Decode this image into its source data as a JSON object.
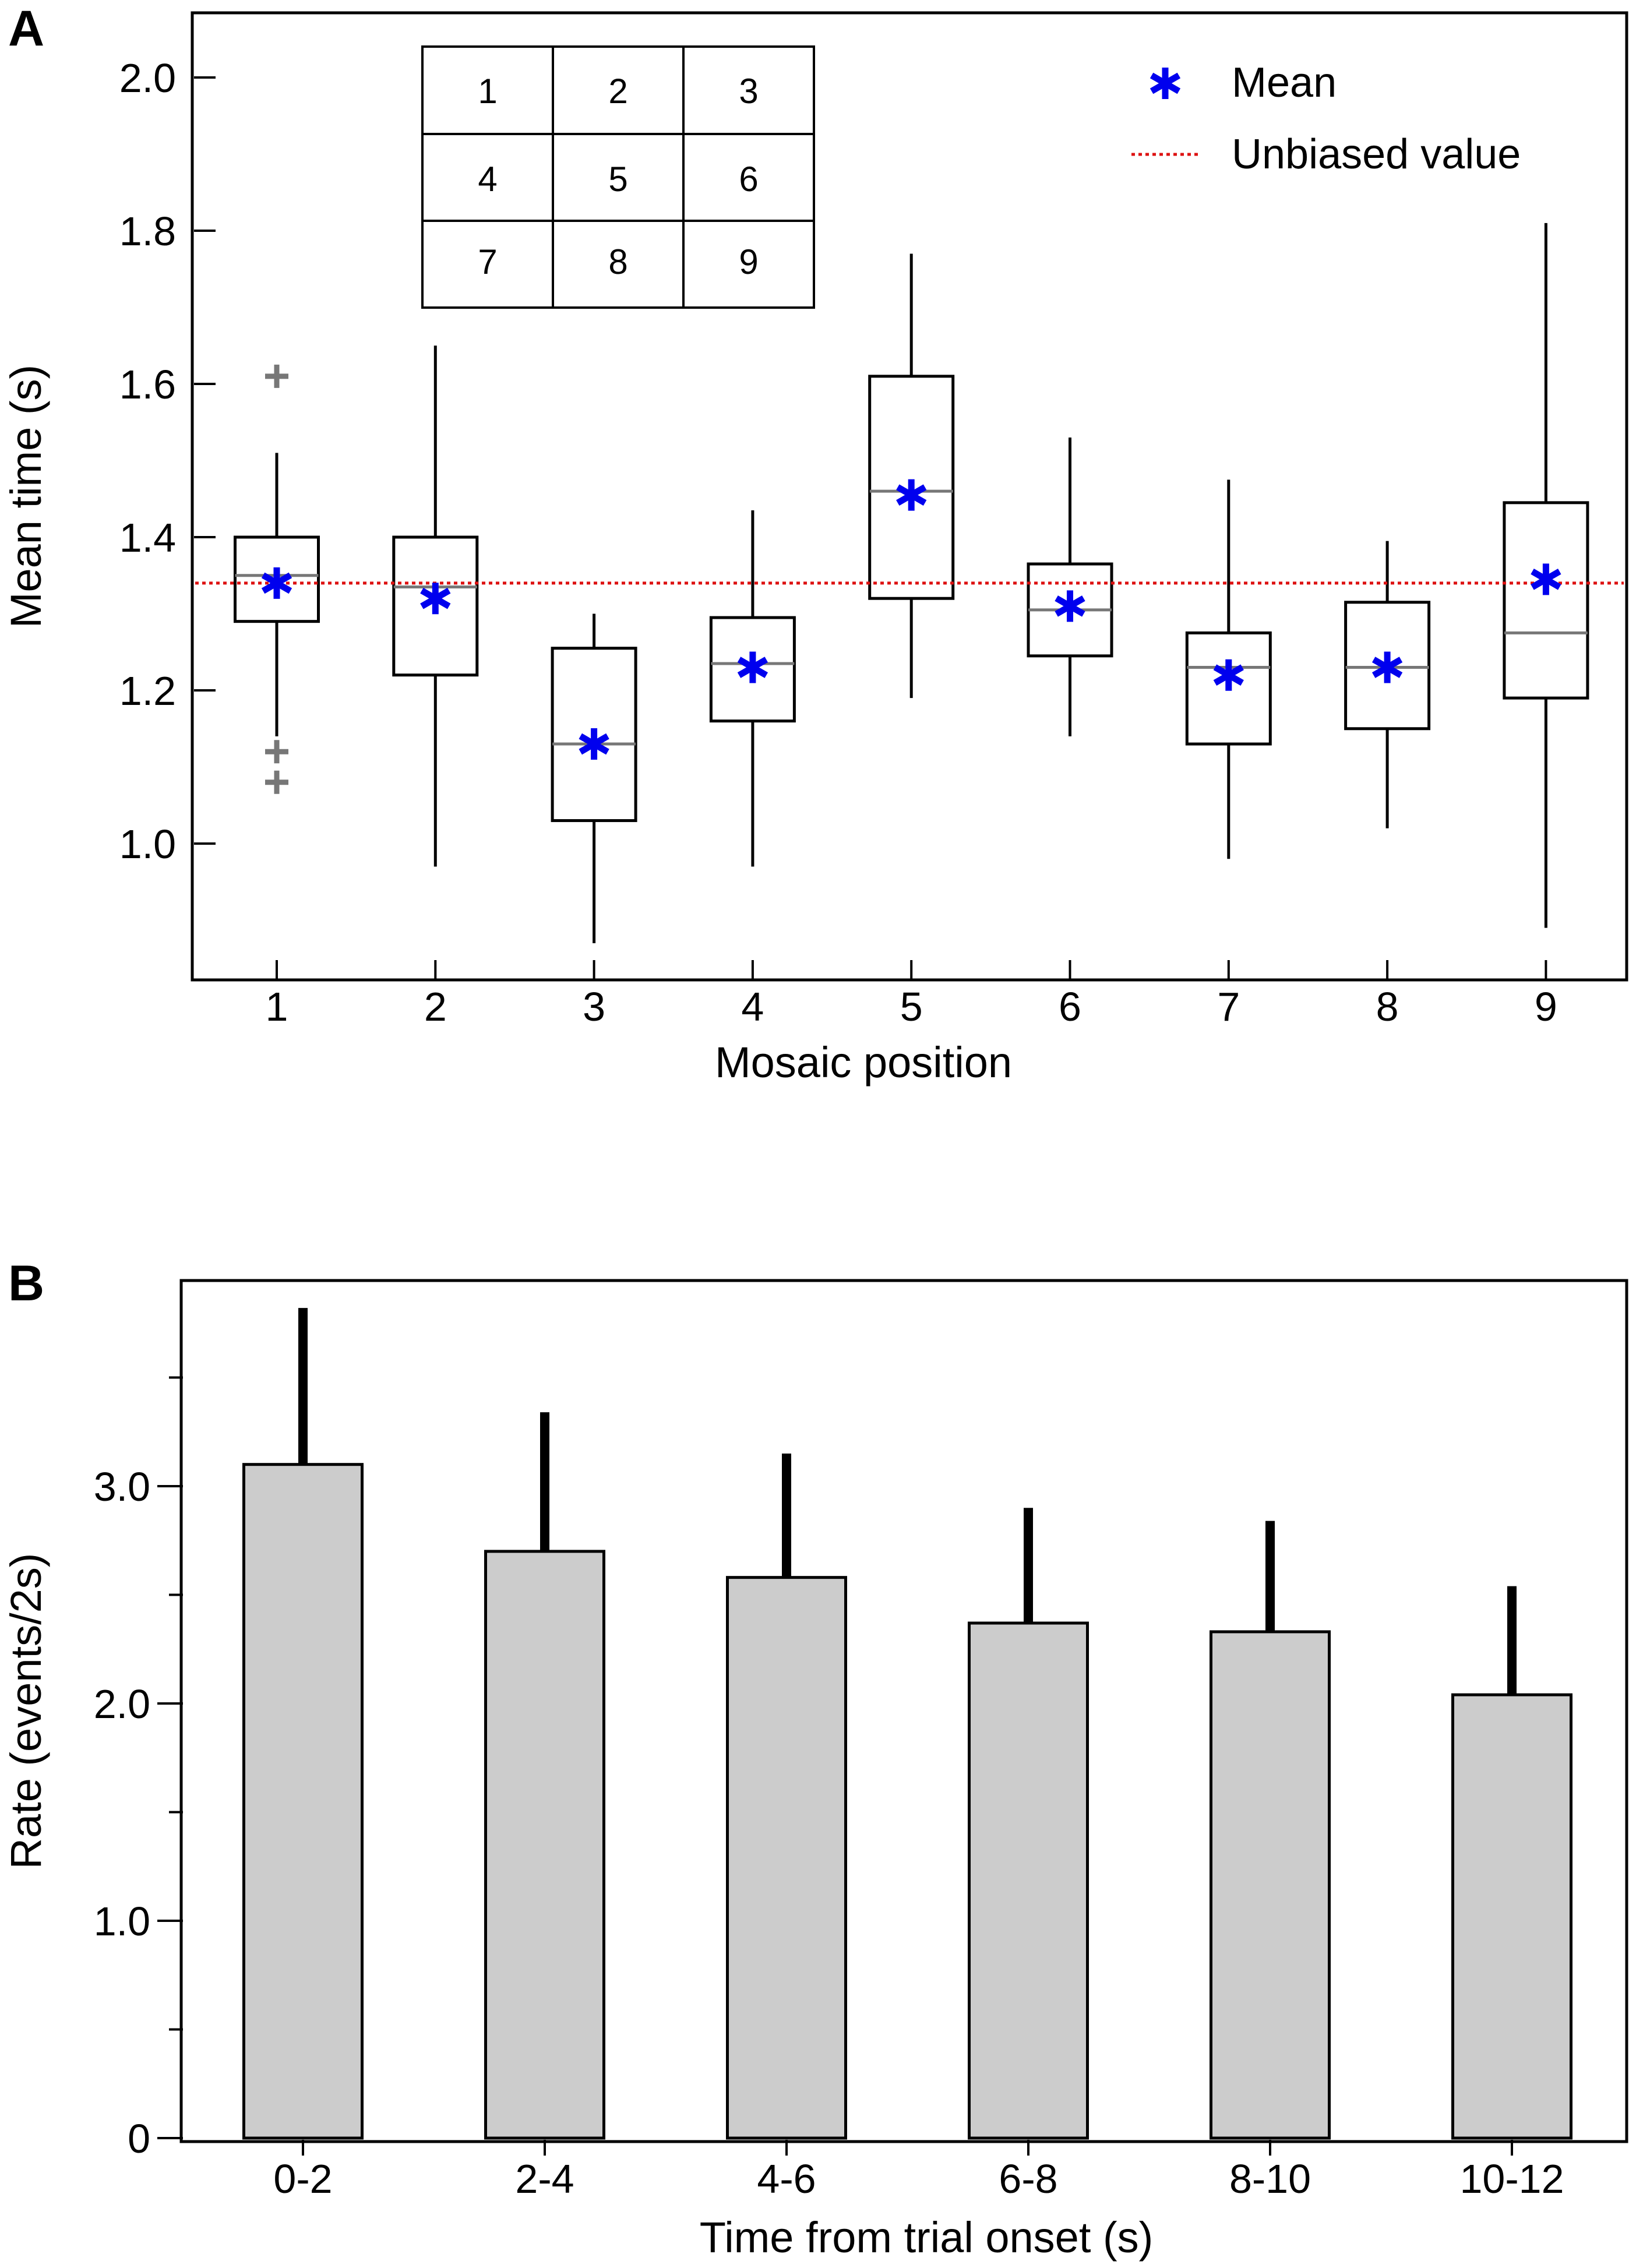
{
  "chart_data": [
    {
      "panel_label": "A",
      "type": "box",
      "xlabel": "Mosaic position",
      "ylabel": "Mean time (s)",
      "categories": [
        "1",
        "2",
        "3",
        "4",
        "5",
        "6",
        "7",
        "8",
        "9"
      ],
      "ylim": [
        0.83,
        2.09
      ],
      "yticks": [
        1.0,
        1.2,
        1.4,
        1.6,
        1.8,
        2.0
      ],
      "ytick_labels": [
        "1.0",
        "1.2",
        "1.4",
        "1.6",
        "1.8",
        "2.0"
      ],
      "boxes": [
        {
          "whisker_low": 1.14,
          "q1": 1.29,
          "median": 1.35,
          "q3": 1.4,
          "whisker_high": 1.51,
          "mean": 1.34,
          "outliers": [
            1.61,
            1.12,
            1.08
          ]
        },
        {
          "whisker_low": 0.97,
          "q1": 1.22,
          "median": 1.335,
          "q3": 1.4,
          "whisker_high": 1.65,
          "mean": 1.32,
          "outliers": []
        },
        {
          "whisker_low": 0.87,
          "q1": 1.03,
          "median": 1.13,
          "q3": 1.255,
          "whisker_high": 1.3,
          "mean": 1.13,
          "outliers": []
        },
        {
          "whisker_low": 0.97,
          "q1": 1.16,
          "median": 1.235,
          "q3": 1.295,
          "whisker_high": 1.435,
          "mean": 1.23,
          "outliers": []
        },
        {
          "whisker_low": 1.19,
          "q1": 1.32,
          "median": 1.46,
          "q3": 1.61,
          "whisker_high": 1.77,
          "mean": 1.455,
          "outliers": []
        },
        {
          "whisker_low": 1.14,
          "q1": 1.245,
          "median": 1.305,
          "q3": 1.365,
          "whisker_high": 1.53,
          "mean": 1.31,
          "outliers": []
        },
        {
          "whisker_low": 0.98,
          "q1": 1.13,
          "median": 1.23,
          "q3": 1.275,
          "whisker_high": 1.475,
          "mean": 1.22,
          "outliers": []
        },
        {
          "whisker_low": 1.02,
          "q1": 1.15,
          "median": 1.23,
          "q3": 1.315,
          "whisker_high": 1.395,
          "mean": 1.23,
          "outliers": []
        },
        {
          "whisker_low": 0.89,
          "q1": 1.19,
          "median": 1.275,
          "q3": 1.445,
          "whisker_high": 1.81,
          "mean": 1.345,
          "outliers": []
        }
      ],
      "reference_line": {
        "value": 1.34,
        "label": "Unbiased value",
        "color": "#dd1111"
      },
      "legend": [
        {
          "label": "Mean",
          "marker": "asterisk",
          "color": "#0000ee"
        },
        {
          "label": "Unbiased value",
          "marker": "dotted-line",
          "color": "#dd1111"
        }
      ],
      "legend_position": "top-right",
      "inset_grid": [
        [
          "1",
          "2",
          "3"
        ],
        [
          "4",
          "5",
          "6"
        ],
        [
          "7",
          "8",
          "9"
        ]
      ],
      "colors": {
        "box": "#000000",
        "median": "#777777",
        "mean": "#0000ee",
        "outlier": "#777777"
      }
    },
    {
      "panel_label": "B",
      "type": "bar",
      "xlabel": "Time from trial onset (s)",
      "ylabel": "Rate (events/2s)",
      "categories": [
        "0-2",
        "2-4",
        "4-6",
        "6-8",
        "8-10",
        "10-12"
      ],
      "values": [
        3.1,
        2.7,
        2.58,
        2.37,
        2.33,
        2.04
      ],
      "error_upper": [
        3.82,
        3.34,
        3.15,
        2.9,
        2.84,
        2.54
      ],
      "ylim": [
        0,
        3.96
      ],
      "yticks_major": [
        0,
        1.0,
        2.0,
        3.0
      ],
      "ytick_labels": [
        "0",
        "1.0",
        "2.0",
        "3.0"
      ],
      "yticks_minor": [
        0.5,
        1.5,
        2.5,
        3.5
      ],
      "colors": {
        "bar": "#cccccc",
        "edge": "#000000",
        "error": "#000000"
      }
    }
  ]
}
